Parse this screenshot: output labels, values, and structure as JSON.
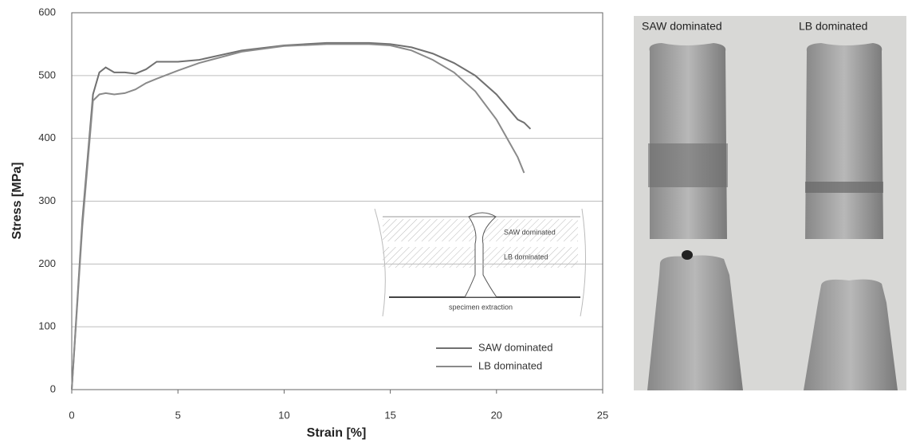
{
  "chart_data": {
    "type": "line",
    "x_label": "Strain [%]",
    "y_label": "Stress [MPa]",
    "x": [
      0,
      0.5,
      1,
      1.3,
      1.6,
      2,
      2.5,
      3,
      3.5,
      4,
      5,
      6,
      8,
      10,
      12,
      14,
      15,
      16,
      17,
      18,
      19,
      20,
      21,
      21.3,
      21.6
    ],
    "series": [
      {
        "name": "SAW dominated",
        "color": "#707070",
        "values": [
          0,
          270,
          470,
          505,
          513,
          505,
          505,
          503,
          510,
          522,
          522,
          525,
          540,
          548,
          552,
          552,
          550,
          545,
          535,
          520,
          500,
          470,
          430,
          425,
          415
        ]
      },
      {
        "name": "LB dominated",
        "color": "#8a8a8a",
        "values": [
          0,
          260,
          460,
          470,
          472,
          470,
          472,
          478,
          488,
          495,
          508,
          520,
          538,
          547,
          550,
          550,
          548,
          540,
          525,
          505,
          475,
          430,
          370,
          345,
          null
        ]
      }
    ],
    "xlim": [
      0,
      25
    ],
    "xticks": [
      0,
      5,
      10,
      15,
      20,
      25
    ],
    "ylim": [
      0,
      600
    ],
    "yticks": [
      0,
      100,
      200,
      300,
      400,
      500,
      600
    ],
    "grid": true,
    "legend": "lower right",
    "inset_labels": [
      "SAW dominated",
      "LB dominated",
      "specimen extraction"
    ],
    "photo_labels": [
      "SAW dominated",
      "LB dominated"
    ]
  }
}
